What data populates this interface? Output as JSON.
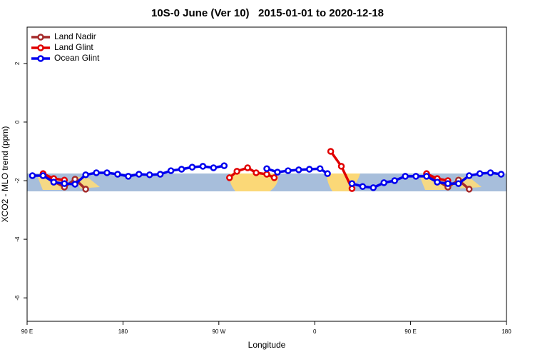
{
  "chart_data": {
    "type": "line",
    "title": "10S-0 June (Ver 10)   2015-01-01 to 2020-12-18",
    "x_label": "Longitude",
    "y_label": "XCO2 - MLO trend (ppm)",
    "xlim": [
      90,
      540
    ],
    "ylim": [
      -6.8,
      3.24
    ],
    "xticks": [
      {
        "value": 90,
        "label": "90 E"
      },
      180,
      {
        "value": 270,
        "label": "90 W"
      },
      {
        "value": 360,
        "label": "0"
      },
      {
        "value": 450,
        "label": "90 E"
      },
      {
        "value": 540,
        "label": "180"
      }
    ],
    "yticks": [
      -6,
      -4,
      -2,
      0,
      2
    ],
    "legend": "top-left",
    "series": [
      {
        "name": "Land Nadir",
        "color": "#a52a2a",
        "x": [
          105,
          125,
          135,
          145,
          null,
          465,
          475,
          485,
          495,
          505
        ],
        "values": [
          -1.83,
          -2.22,
          -1.95,
          -2.29,
          null,
          -1.78,
          -2.0,
          -2.22,
          -1.98,
          -2.29
        ]
      },
      {
        "name": "Land Glint",
        "color": "#e00000",
        "x": [
          105,
          115,
          125,
          null,
          280,
          287,
          297,
          305,
          315,
          322,
          null,
          375,
          385,
          395,
          null,
          465,
          475,
          485
        ],
        "values": [
          -1.76,
          -1.93,
          -1.98,
          null,
          -1.9,
          -1.68,
          -1.56,
          -1.73,
          -1.78,
          -1.9,
          null,
          -1.0,
          -1.51,
          -2.27,
          null,
          -1.76,
          -1.93,
          -2.0
        ]
      },
      {
        "name": "Ocean Glint",
        "color": "#0000ee",
        "x": [
          95,
          105,
          115,
          125,
          135,
          145,
          155,
          165,
          175,
          185,
          195,
          205,
          215,
          225,
          235,
          245,
          255,
          265,
          275,
          null,
          315,
          325,
          335,
          345,
          355,
          365,
          372,
          null,
          395,
          405,
          415,
          425,
          435,
          445,
          455,
          465,
          475,
          485,
          495,
          505,
          515,
          525,
          535
        ],
        "values": [
          -1.83,
          -1.83,
          -2.05,
          -2.1,
          -2.12,
          -1.8,
          -1.73,
          -1.73,
          -1.78,
          -1.85,
          -1.78,
          -1.8,
          -1.78,
          -1.66,
          -1.61,
          -1.54,
          -1.51,
          -1.56,
          -1.49,
          null,
          -1.59,
          -1.71,
          -1.66,
          -1.63,
          -1.61,
          -1.59,
          -1.76,
          null,
          -2.1,
          -2.2,
          -2.24,
          -2.07,
          -2.0,
          -1.85,
          -1.85,
          -1.85,
          -2.05,
          -2.1,
          -2.1,
          -1.83,
          -1.76,
          -1.73,
          -1.78
        ]
      }
    ]
  }
}
